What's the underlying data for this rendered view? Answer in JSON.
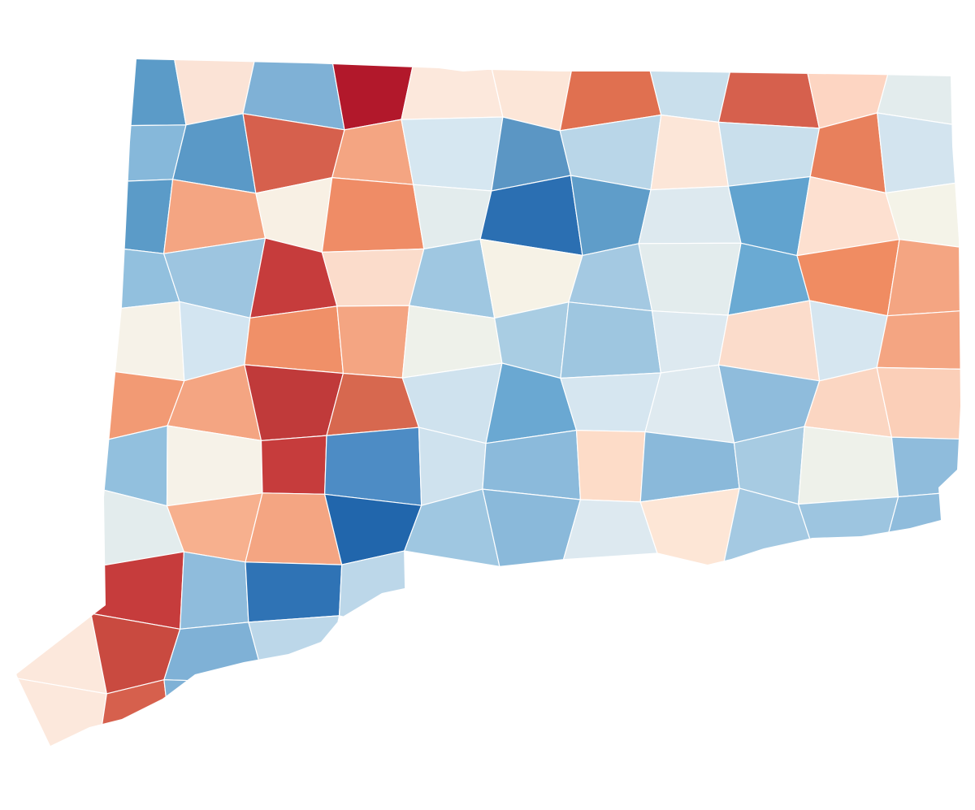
{
  "map": {
    "regions": [
      [
        null,
        "#5b9bc8",
        "#fbe3d6",
        "#7fb1d6",
        "#b2182b",
        "#fce8dc",
        "#fce6d8",
        "#e07050",
        "#c9dfec",
        "#d6604d",
        "#fdd5c2",
        "#e3eced"
      ],
      [
        null,
        "#86b8da",
        "#5a99c7",
        "#d6604d",
        "#f4a582",
        "#d6e7f1",
        "#5b96c4",
        "#b9d6e8",
        "#fce6d8",
        "#c9dfec",
        "#e8805c",
        "#d3e4ef"
      ],
      [
        null,
        "#5b9bc8",
        "#f4a582",
        "#f8f0e4",
        "#ef8c66",
        "#e3eced",
        "#2b6fb2",
        "#5f9dc9",
        "#dde9ef",
        "#61a3cf",
        "#fde0d0",
        "#f4f3e8"
      ],
      [
        null,
        "#92c0de",
        "#9dc5e0",
        "#c63c3c",
        "#fbdccb",
        "#9fc7e1",
        "#f6f2e6",
        "#a4c9e2",
        "#e3eced",
        "#6aaad3",
        "#f08c62",
        "#f4a582"
      ],
      [
        null,
        "#f6f2e8",
        "#d3e5f1",
        "#f09068",
        "#f4a582",
        "#eef1ea",
        "#a9cde3",
        "#9ec6e0",
        "#dde9f0",
        "#fbdccb",
        "#d6e6f0",
        "#f4a582"
      ],
      [
        null,
        "#f29a74",
        "#f4a582",
        "#c03a3a",
        "#d7684f",
        "#cfe2ee",
        "#6aa8d2",
        "#d6e6f0",
        "#dfeaf0",
        "#8fbcdc",
        "#fbd6c2",
        "#fbcfb8"
      ],
      [
        null,
        "#92c0de",
        "#f6f2e8",
        "#c63c3c",
        "#4d8cc5",
        "#cfe2ee",
        "#8bbadb",
        "#fddcc8",
        "#8ab9da",
        "#a7cbe2",
        "#eef1ea",
        "#8fbcdc"
      ],
      [
        null,
        "#e3eced",
        "#f7b08e",
        "#f4a582",
        "#2166ac",
        "#9fc7e1",
        "#8ab9da",
        "#dde9f0",
        "#fde6d6",
        "#a4c9e2",
        "#9dc5e0",
        "#8fbcdc"
      ],
      [
        null,
        "#c63c3c",
        "#8fbcdc",
        "#2f73b5",
        "#bcd7e9",
        null,
        null,
        null,
        null,
        null,
        null,
        null
      ],
      [
        "#fce8dc",
        "#c94a40",
        "#7fb1d6",
        "#bcd7e9",
        null,
        null,
        null,
        null,
        null,
        null,
        null,
        null
      ],
      [
        "#fce8dc",
        "#d6604d",
        "#7fb1d6",
        null,
        null,
        null,
        null,
        null,
        null,
        null,
        null,
        null
      ]
    ]
  }
}
